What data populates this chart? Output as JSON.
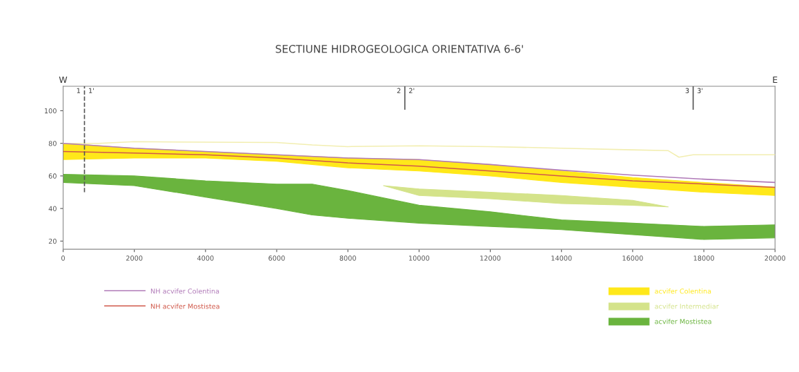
{
  "chart_data": {
    "type": "line",
    "title": "SECTIUNE HIDROGEOLOGICA ORIENTATIVA 6-6'",
    "xlim": [
      0,
      20000
    ],
    "xticks": [
      0,
      2000,
      4000,
      6000,
      8000,
      10000,
      12000,
      14000,
      16000,
      18000,
      20000
    ],
    "ylim": [
      15,
      115
    ],
    "yticks": [
      20,
      40,
      60,
      80,
      100
    ],
    "grid": false,
    "legend": "bottom",
    "series": [
      {
        "name": "acvifer Colentina",
        "color": "#ffe81a",
        "x": [
          0,
          2000,
          4000,
          6000,
          7000,
          8000,
          10000,
          12000,
          14000,
          16000,
          18000,
          20000
        ],
        "values": [
          null,
          null,
          null,
          null,
          null,
          null,
          null,
          null,
          null,
          null,
          null,
          null
        ],
        "upper": [
          80,
          77,
          75,
          73,
          72,
          71,
          70,
          67,
          63,
          59,
          56,
          53
        ],
        "lower": [
          70,
          71,
          71,
          69,
          67,
          65,
          63,
          60,
          56,
          53,
          50,
          48
        ]
      },
      {
        "name": "acvifer Intermediar",
        "color": "#d4e38a",
        "x": [
          9000,
          10000,
          12000,
          14000,
          16000,
          17000
        ],
        "values": [
          null,
          null,
          null,
          null,
          null,
          null
        ],
        "upper": [
          54,
          52,
          50,
          48,
          45,
          41
        ],
        "lower": [
          54,
          48,
          46,
          43,
          42,
          41
        ]
      },
      {
        "name": "acvifer Mostistea",
        "color": "#6ab43e",
        "x": [
          0,
          2000,
          4000,
          6000,
          7000,
          8000,
          10000,
          12000,
          14000,
          16000,
          18000,
          20000
        ],
        "values": [
          null,
          null,
          null,
          null,
          null,
          null,
          null,
          null,
          null,
          null,
          null,
          null
        ],
        "upper": [
          61,
          60,
          57,
          55,
          55,
          51,
          42,
          38,
          33,
          31,
          29,
          30
        ],
        "lower": [
          56,
          54,
          47,
          40,
          36,
          34,
          31,
          29,
          27,
          24,
          21,
          22
        ]
      },
      {
        "color": "#f2eeb0",
        "x": [
          0,
          1000,
          2000,
          6000,
          7000,
          8000,
          10000,
          12000,
          14000,
          16000,
          17000,
          17300,
          17700,
          20000
        ],
        "values": [
          80,
          80,
          81,
          80.5,
          79,
          78,
          78.5,
          78,
          77,
          76,
          75.5,
          71.5,
          73,
          73
        ]
      },
      {
        "name": "NH acvifer Colentina",
        "color": "#b07ab8",
        "x": [
          0,
          2000,
          4000,
          6000,
          8000,
          10000,
          12000,
          14000,
          16000,
          18000,
          20000
        ],
        "values": [
          80,
          77,
          75,
          73,
          71,
          70,
          67,
          63.5,
          60.5,
          58,
          56
        ]
      },
      {
        "name": "NH acvifer Mostistea",
        "color": "#d0584a",
        "x": [
          0,
          2000,
          4000,
          6000,
          8000,
          10000,
          12000,
          14000,
          16000,
          18000,
          20000
        ],
        "values": [
          75,
          74,
          73,
          71,
          68,
          66,
          63,
          60,
          57,
          55,
          53
        ]
      }
    ],
    "ref_lines": [
      {
        "axis": "x",
        "value": 600,
        "line_style": "dashed"
      },
      {
        "axis": "x",
        "value": 9600,
        "line_style": "solid"
      },
      {
        "axis": "x",
        "value": 17700,
        "line_style": "solid"
      }
    ],
    "annotations": [
      "1",
      "1'",
      "2",
      "2'",
      "3",
      "3'",
      "W",
      "E"
    ]
  }
}
